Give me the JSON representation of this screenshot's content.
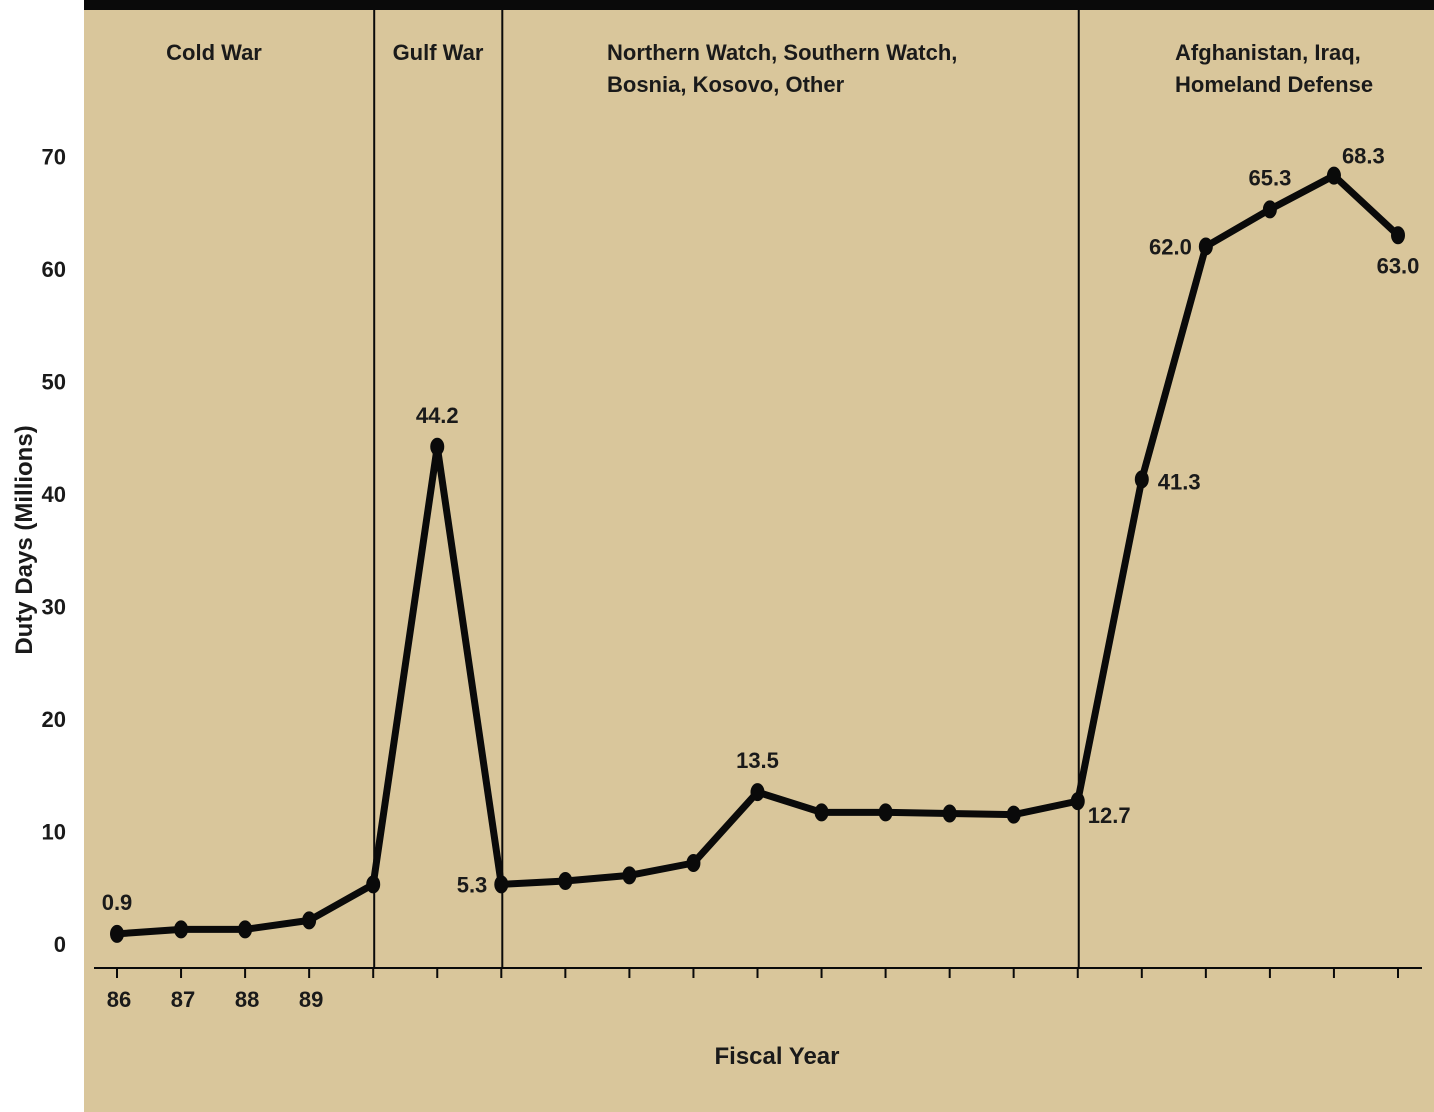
{
  "colors": {
    "background": "#D9C69B",
    "top_bar": "#0A0A0A",
    "line": "#0A0A0A",
    "text": "#1A1A1A"
  },
  "chart_data": {
    "type": "line",
    "title": "",
    "xlabel": "Fiscal Year",
    "ylabel": "Duty Days (Millions)",
    "ylim": [
      0,
      70
    ],
    "yticks": [
      "0",
      "10",
      "20",
      "30",
      "40",
      "50",
      "60",
      "70"
    ],
    "x_tick_labels": [
      "86",
      "87",
      "88",
      "89"
    ],
    "x_tick_count": 21,
    "grid": false,
    "series": [
      {
        "values": [
          0.9,
          1.3,
          1.3,
          2.1,
          5.3,
          44.2,
          5.3,
          5.6,
          6.1,
          7.2,
          13.5,
          11.7,
          11.7,
          11.6,
          11.5,
          12.7,
          41.3,
          62.0,
          65.3,
          68.3,
          63.0
        ]
      }
    ],
    "data_labels": [
      {
        "index": 0,
        "text": "0.9",
        "pos": "above"
      },
      {
        "index": 5,
        "text": "44.2",
        "pos": "above"
      },
      {
        "index": 6,
        "text": "5.3",
        "pos": "left"
      },
      {
        "index": 10,
        "text": "13.5",
        "pos": "above"
      },
      {
        "index": 15,
        "text": "12.7",
        "pos": "below-right"
      },
      {
        "index": 16,
        "text": "41.3",
        "pos": "right"
      },
      {
        "index": 17,
        "text": "62.0",
        "pos": "left"
      },
      {
        "index": 18,
        "text": "65.3",
        "pos": "above"
      },
      {
        "index": 19,
        "text": "68.3",
        "pos": "above-right"
      },
      {
        "index": 20,
        "text": "63.0",
        "pos": "below"
      }
    ],
    "periods": [
      {
        "name": "Cold War",
        "lines": [
          "Cold War"
        ],
        "start": 0,
        "end": 4
      },
      {
        "name": "Gulf War",
        "lines": [
          "Gulf War"
        ],
        "start": 4,
        "end": 6
      },
      {
        "name": "Northern Watch, Southern Watch, Bosnia, Kosovo, Other",
        "lines": [
          "Northern Watch, Southern Watch,",
          "Bosnia, Kosovo, Other"
        ],
        "start": 6,
        "end": 15
      },
      {
        "name": "Afghanistan, Iraq, Homeland Defense",
        "lines": [
          "Afghanistan, Iraq,",
          "Homeland Defense"
        ],
        "start": 15,
        "end": 20
      }
    ]
  }
}
